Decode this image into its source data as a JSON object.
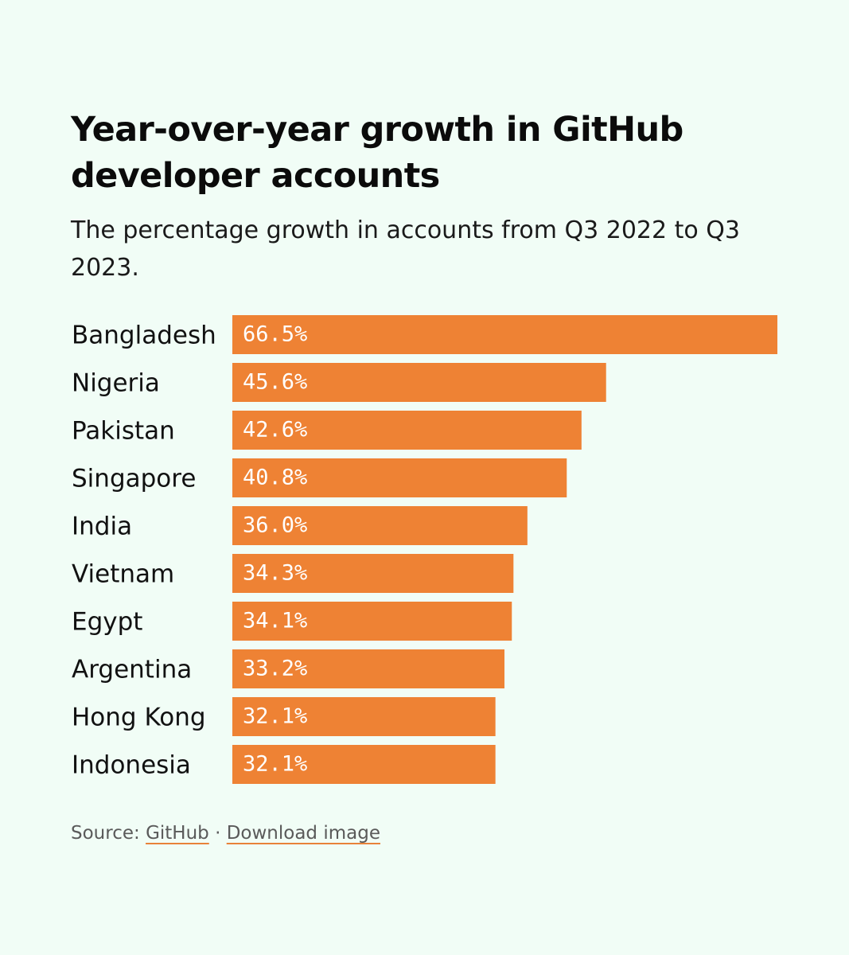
{
  "chart_data": {
    "type": "bar",
    "orientation": "horizontal",
    "title": "Year-over-year growth in GitHub developer accounts",
    "subtitle": "The percentage growth in accounts from Q3 2022 to Q3 2023.",
    "categories": [
      "Bangladesh",
      "Nigeria",
      "Pakistan",
      "Singapore",
      "India",
      "Vietnam",
      "Egypt",
      "Argentina",
      "Hong Kong",
      "Indonesia"
    ],
    "values": [
      66.5,
      45.6,
      42.6,
      40.8,
      36.0,
      34.3,
      34.1,
      33.2,
      32.1,
      32.1
    ],
    "value_labels": [
      "66.5%",
      "45.6%",
      "42.6%",
      "40.8%",
      "36.0%",
      "34.3%",
      "34.1%",
      "33.2%",
      "32.1%",
      "32.1%"
    ],
    "xlim": [
      0,
      66.5
    ],
    "grid": false,
    "bar_color": "#ee8234"
  },
  "footer": {
    "source_prefix": "Source: ",
    "source_link": "GitHub",
    "separator": " · ",
    "download_link": "Download image"
  },
  "colors": {
    "background": "#f1fdf6",
    "bar": "#ee8234",
    "link_underline": "#e8823a"
  }
}
